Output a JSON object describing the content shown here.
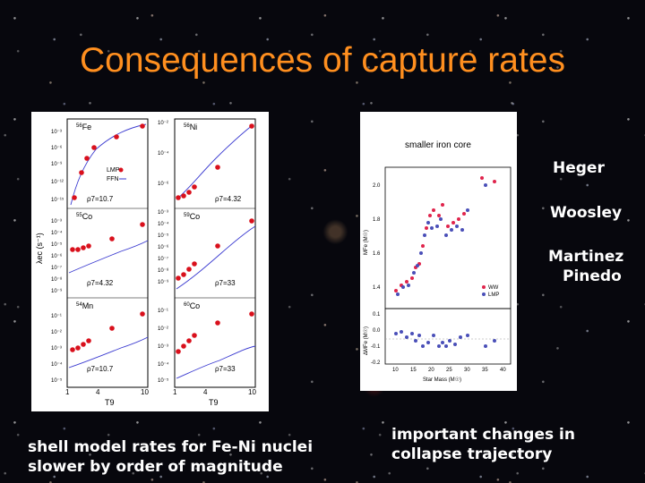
{
  "slide": {
    "title": "Consequences of capture rates"
  },
  "left_figure": {
    "panels": [
      {
        "nucleus_mass": "56",
        "nucleus_symbol": "Fe",
        "rho_label": "ρ7=10.7",
        "legend": [
          "LMP",
          "FFN"
        ]
      },
      {
        "nucleus_mass": "56",
        "nucleus_symbol": "Ni",
        "rho_label": "ρ7=4.32"
      },
      {
        "nucleus_mass": "55",
        "nucleus_symbol": "Co",
        "rho_label": "ρ7=4.32"
      },
      {
        "nucleus_mass": "59",
        "nucleus_symbol": "Co",
        "rho_label": "ρ7=33"
      },
      {
        "nucleus_mass": "54",
        "nucleus_symbol": "Mn",
        "rho_label": "ρ7=10.7"
      },
      {
        "nucleus_mass": "60",
        "nucleus_symbol": "Co",
        "rho_label": "ρ7=33"
      }
    ],
    "y_axis_label": "λec (s⁻¹)",
    "x_axis_label": "T9",
    "x_ticks": [
      "1",
      "4",
      "10",
      "1",
      "4",
      "10"
    ],
    "y_ticks_left": [
      "10⁻³",
      "10⁻⁶",
      "10⁻⁹",
      "10⁻¹²",
      "10⁻¹⁵",
      "10⁻³",
      "10⁻⁴",
      "10⁻⁵",
      "10⁻⁶",
      "10⁻⁷",
      "10⁻⁸",
      "10⁻⁹",
      "10⁻¹",
      "10⁻²",
      "10⁻³",
      "10⁻⁴",
      "10⁻⁵"
    ],
    "y_ticks_right": [
      "10⁻²",
      "10⁻⁴",
      "10⁻⁶",
      "10⁻³",
      "10⁻⁴",
      "10⁻⁵",
      "10⁻⁶",
      "10⁻⁷",
      "10⁻⁸",
      "10⁻⁹",
      "10⁻¹",
      "10⁻²",
      "10⁻³",
      "10⁻⁴",
      "10⁻⁵"
    ]
  },
  "right_figure": {
    "title": "smaller iron core",
    "top_ylabel": "MFe (M☉)",
    "bottom_ylabel": "ΔMFe (M☉)",
    "xlabel": "Star Mass (M☉)",
    "top_yticks": [
      "2.0",
      "1.8",
      "1.6",
      "1.4"
    ],
    "bottom_yticks": [
      "0.1",
      "0.0",
      "-0.1",
      "-0.2"
    ],
    "xticks": [
      "10",
      "15",
      "20",
      "25",
      "30",
      "35",
      "40"
    ],
    "legend": [
      "WW",
      "LMP"
    ],
    "colors": {
      "WW": "#e0244c",
      "LMP": "#4a4fb8"
    }
  },
  "names": {
    "heger": "Heger",
    "woosley": "Woosley",
    "martinez": "Martinez",
    "pinedo": "Pinedo"
  },
  "captions": {
    "left_line1": "shell model rates for Fe-Ni nuclei",
    "left_line2": "slower by order of magnitude",
    "right_line1": "important changes in",
    "right_line2": "collapse trajectory"
  }
}
